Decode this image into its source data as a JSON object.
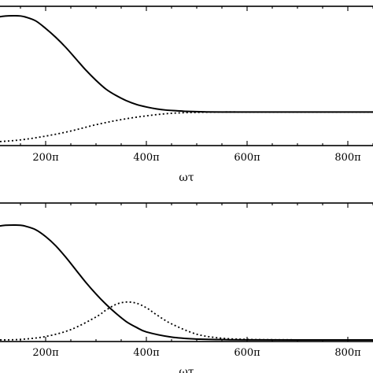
{
  "chart_data": [
    {
      "type": "line",
      "xlabel": "ωτ",
      "x_ticks": [
        {
          "value": 200,
          "label": "200π"
        },
        {
          "value": 400,
          "label": "400π"
        },
        {
          "value": 600,
          "label": "600π"
        },
        {
          "value": 800,
          "label": "800π"
        }
      ],
      "xlim": [
        0,
        850
      ],
      "ylim": [
        0,
        1
      ],
      "series": [
        {
          "style": "solid",
          "x": [
            0,
            20,
            40,
            60,
            80,
            100,
            120,
            140,
            150,
            160,
            180,
            200,
            220,
            240,
            260,
            280,
            300,
            320,
            340,
            360,
            380,
            400,
            420,
            440,
            460,
            480,
            500,
            520,
            550,
            600,
            700,
            850
          ],
          "y": [
            0.8,
            0.85,
            0.89,
            0.93,
            0.96,
            0.985,
            0.998,
            1.0,
            0.998,
            0.99,
            0.96,
            0.9,
            0.83,
            0.75,
            0.66,
            0.57,
            0.49,
            0.42,
            0.37,
            0.33,
            0.3,
            0.28,
            0.265,
            0.255,
            0.25,
            0.245,
            0.243,
            0.241,
            0.24,
            0.24,
            0.24,
            0.24
          ]
        },
        {
          "style": "dotted",
          "x": [
            0,
            50,
            100,
            150,
            200,
            250,
            300,
            350,
            400,
            450,
            500,
            550,
            600,
            700,
            850
          ],
          "y": [
            0.0,
            0.0,
            0.005,
            0.02,
            0.05,
            0.09,
            0.14,
            0.18,
            0.21,
            0.23,
            0.237,
            0.24,
            0.24,
            0.24,
            0.24
          ]
        }
      ]
    },
    {
      "type": "line",
      "xlabel": "ωτ",
      "x_ticks": [
        {
          "value": 200,
          "label": "200π"
        },
        {
          "value": 400,
          "label": "400π"
        },
        {
          "value": 600,
          "label": "600π"
        },
        {
          "value": 800,
          "label": "800π"
        }
      ],
      "xlim": [
        0,
        850
      ],
      "ylim": [
        0,
        1
      ],
      "series": [
        {
          "style": "solid",
          "x": [
            0,
            20,
            40,
            60,
            80,
            100,
            120,
            140,
            150,
            160,
            180,
            200,
            220,
            240,
            260,
            280,
            300,
            320,
            340,
            360,
            380,
            400,
            450,
            500,
            550,
            600,
            700,
            850
          ],
          "y": [
            0.76,
            0.82,
            0.87,
            0.92,
            0.96,
            0.985,
            0.998,
            1.0,
            0.998,
            0.99,
            0.96,
            0.9,
            0.82,
            0.72,
            0.61,
            0.5,
            0.4,
            0.31,
            0.23,
            0.16,
            0.11,
            0.07,
            0.025,
            0.008,
            0.003,
            0.001,
            0.0,
            0.0
          ]
        },
        {
          "style": "dotted",
          "x": [
            0,
            100,
            150,
            200,
            250,
            300,
            320,
            340,
            360,
            380,
            400,
            420,
            450,
            500,
            550,
            600,
            650,
            700,
            850
          ],
          "y": [
            0.0,
            0.0,
            0.005,
            0.03,
            0.09,
            0.2,
            0.26,
            0.31,
            0.33,
            0.32,
            0.28,
            0.22,
            0.14,
            0.05,
            0.015,
            0.005,
            0.002,
            0.001,
            0.0
          ]
        }
      ]
    }
  ]
}
